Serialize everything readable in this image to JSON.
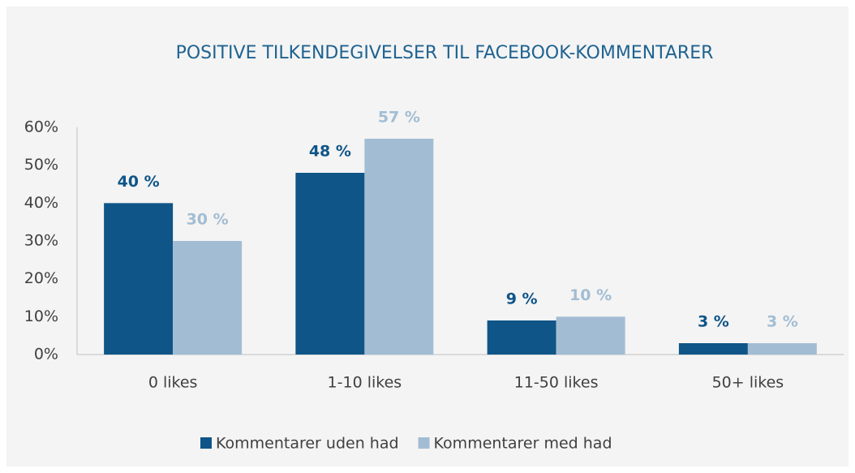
{
  "chart_data": {
    "type": "bar",
    "title": "POSITIVE TILKENDEGIVELSER TIL FACEBOOK-KOMMENTARER",
    "categories": [
      "0 likes",
      "1-10 likes",
      "11-50 likes",
      "50+ likes"
    ],
    "series": [
      {
        "name": "Kommentarer uden had",
        "color": "#0f5588",
        "values": [
          40,
          48,
          9,
          3
        ],
        "value_labels": [
          "40 %",
          "48 %",
          "9 %",
          "3 %"
        ]
      },
      {
        "name": "Kommentarer med had",
        "color": "#a2bdd3",
        "values": [
          30,
          57,
          10,
          3
        ],
        "value_labels": [
          "30 %",
          "57 %",
          "10 %",
          "3 %"
        ]
      }
    ],
    "ylim": [
      0,
      60
    ],
    "yticks": [
      {
        "value": 0,
        "label": "0%"
      },
      {
        "value": 10,
        "label": "10%"
      },
      {
        "value": 20,
        "label": "20%"
      },
      {
        "value": 30,
        "label": "30%"
      },
      {
        "value": 40,
        "label": "40%"
      },
      {
        "value": 50,
        "label": "50%"
      },
      {
        "value": 60,
        "label": "60%"
      }
    ],
    "grid": false,
    "legend": "bottom"
  }
}
